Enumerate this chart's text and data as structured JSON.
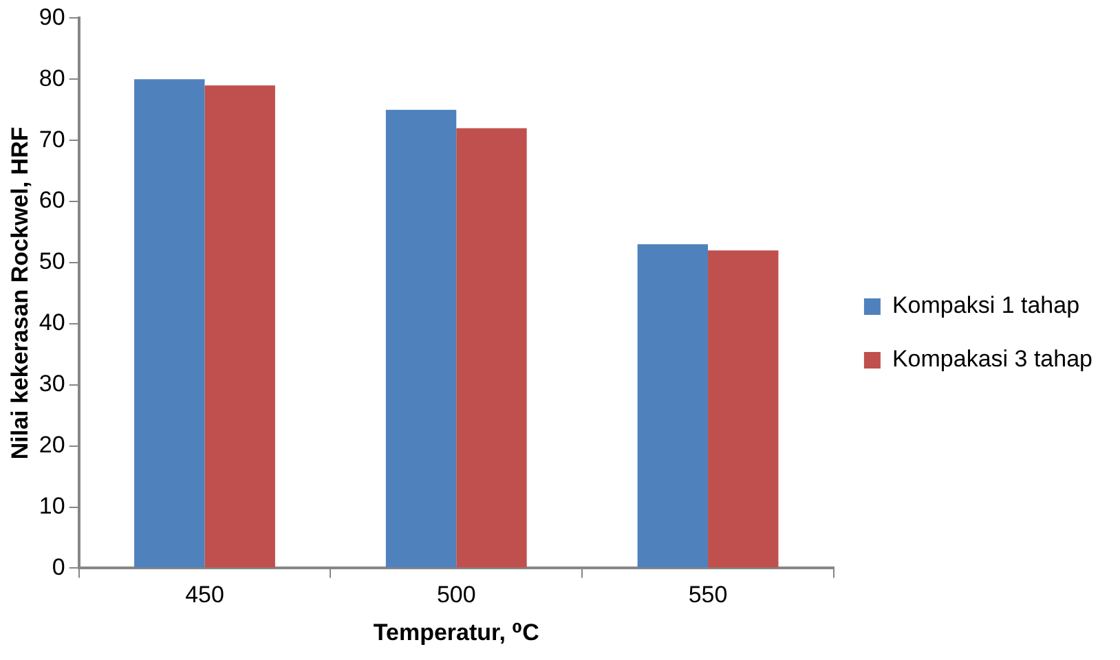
{
  "chart_data": {
    "type": "bar",
    "xlabel": "Temperatur, ⁰C",
    "ylabel": "Nilai kekerasan Rockwel, HRF",
    "categories": [
      "450",
      "500",
      "550"
    ],
    "series": [
      {
        "name": "Kompaksi 1 tahap",
        "color": "#4f81bd",
        "values": [
          80,
          75,
          53
        ]
      },
      {
        "name": "Kompakasi 3 tahap",
        "color": "#c0504d",
        "values": [
          79,
          72,
          52
        ]
      }
    ],
    "ylim": [
      0,
      90
    ],
    "yticks": [
      0,
      10,
      20,
      30,
      40,
      50,
      60,
      70,
      80,
      90
    ],
    "grid": false,
    "legend": "right"
  }
}
